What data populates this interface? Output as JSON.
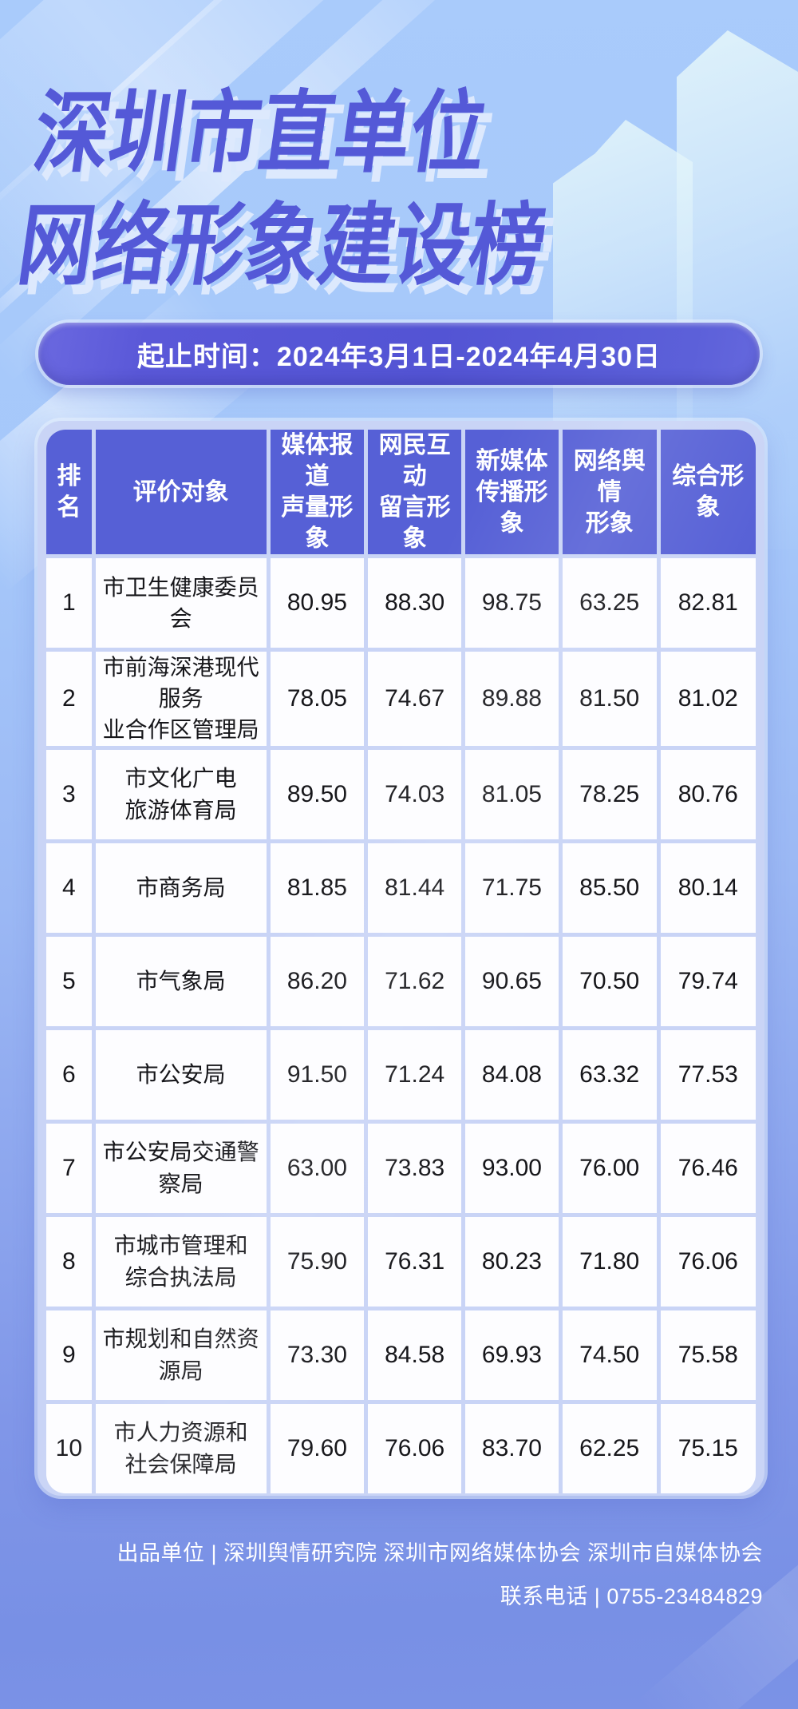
{
  "title": {
    "line1": "深圳市直单位",
    "line2": "网络形象建设榜"
  },
  "banner": {
    "text": "起止时间：2024年3月1日-2024年4月30日"
  },
  "table": {
    "headers": [
      [
        "排名"
      ],
      [
        "评价对象"
      ],
      [
        "媒体报道",
        "声量形象"
      ],
      [
        "网民互动",
        "留言形象"
      ],
      [
        "新媒体",
        "传播形象"
      ],
      [
        "网络舆情",
        "形象"
      ],
      [
        "综合形象"
      ]
    ],
    "rows": [
      {
        "rank": "1",
        "name": [
          "市卫生健康委员会"
        ],
        "scores": [
          "80.95",
          "88.30",
          "98.75",
          "63.25",
          "82.81"
        ]
      },
      {
        "rank": "2",
        "name": [
          "市前海深港现代服务",
          "业合作区管理局"
        ],
        "scores": [
          "78.05",
          "74.67",
          "89.88",
          "81.50",
          "81.02"
        ]
      },
      {
        "rank": "3",
        "name": [
          "市文化广电",
          "旅游体育局"
        ],
        "scores": [
          "89.50",
          "74.03",
          "81.05",
          "78.25",
          "80.76"
        ]
      },
      {
        "rank": "4",
        "name": [
          "市商务局"
        ],
        "scores": [
          "81.85",
          "81.44",
          "71.75",
          "85.50",
          "80.14"
        ]
      },
      {
        "rank": "5",
        "name": [
          "市气象局"
        ],
        "scores": [
          "86.20",
          "71.62",
          "90.65",
          "70.50",
          "79.74"
        ]
      },
      {
        "rank": "6",
        "name": [
          "市公安局"
        ],
        "scores": [
          "91.50",
          "71.24",
          "84.08",
          "63.32",
          "77.53"
        ]
      },
      {
        "rank": "7",
        "name": [
          "市公安局交通警察局"
        ],
        "scores": [
          "63.00",
          "73.83",
          "93.00",
          "76.00",
          "76.46"
        ]
      },
      {
        "rank": "8",
        "name": [
          "市城市管理和",
          "综合执法局"
        ],
        "scores": [
          "75.90",
          "76.31",
          "80.23",
          "71.80",
          "76.06"
        ]
      },
      {
        "rank": "9",
        "name": [
          "市规划和自然资源局"
        ],
        "scores": [
          "73.30",
          "84.58",
          "69.93",
          "74.50",
          "75.58"
        ]
      },
      {
        "rank": "10",
        "name": [
          "市人力资源和",
          "社会保障局"
        ],
        "scores": [
          "79.60",
          "76.06",
          "83.70",
          "62.25",
          "75.15"
        ]
      }
    ]
  },
  "footer": {
    "line1": "出品单位 | 深圳舆情研究院 深圳市网络媒体协会 深圳市自媒体协会",
    "line2": "联系电话 | 0755-23484829"
  },
  "colors": {
    "title_blue": "#5459d7",
    "banner_purple": "#5354d4",
    "header_purple": "#5660d6",
    "table_frame": "#c9d4f6",
    "page_top": "#a9cbfb",
    "page_bottom": "#7890e5",
    "score_text": "#16161a"
  }
}
